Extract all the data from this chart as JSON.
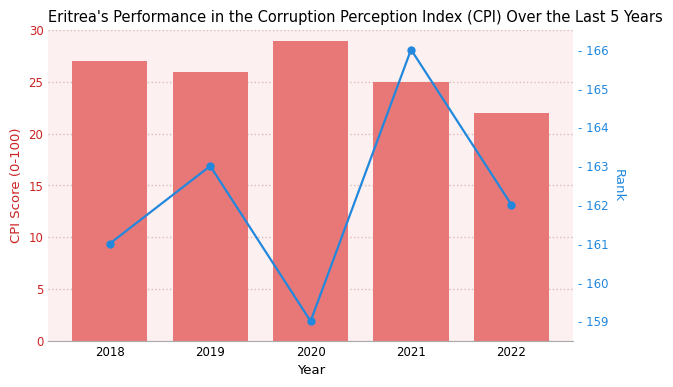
{
  "years": [
    2018,
    2019,
    2020,
    2021,
    2022
  ],
  "cpi_scores": [
    27,
    26,
    29,
    25,
    22
  ],
  "ranks": [
    161,
    163,
    159,
    166,
    162
  ],
  "bar_color": "#E87878",
  "line_color": "#2288DD",
  "title": "Eritrea's Performance in the Corruption Perception Index (CPI) Over the Last 5 Years",
  "xlabel": "Year",
  "ylabel_left": "CPI Score (0-100)",
  "ylabel_right": "Rank",
  "ylim_left": [
    0,
    30
  ],
  "ylim_right": [
    158.5,
    166.5
  ],
  "yticks_left": [
    0,
    5,
    10,
    15,
    20,
    25,
    30
  ],
  "yticks_right": [
    159,
    160,
    161,
    162,
    163,
    164,
    165,
    166
  ],
  "background_color": "#ffffff",
  "plot_bg_color": "#fdf0f0",
  "grid_color": "#ddbbbb",
  "title_fontsize": 10.5,
  "axis_label_fontsize": 9.5,
  "tick_fontsize": 8.5,
  "bar_width": 0.75,
  "bar_alpha": 1.0,
  "left_label_color": "#cc2222",
  "right_label_color": "#2288DD"
}
